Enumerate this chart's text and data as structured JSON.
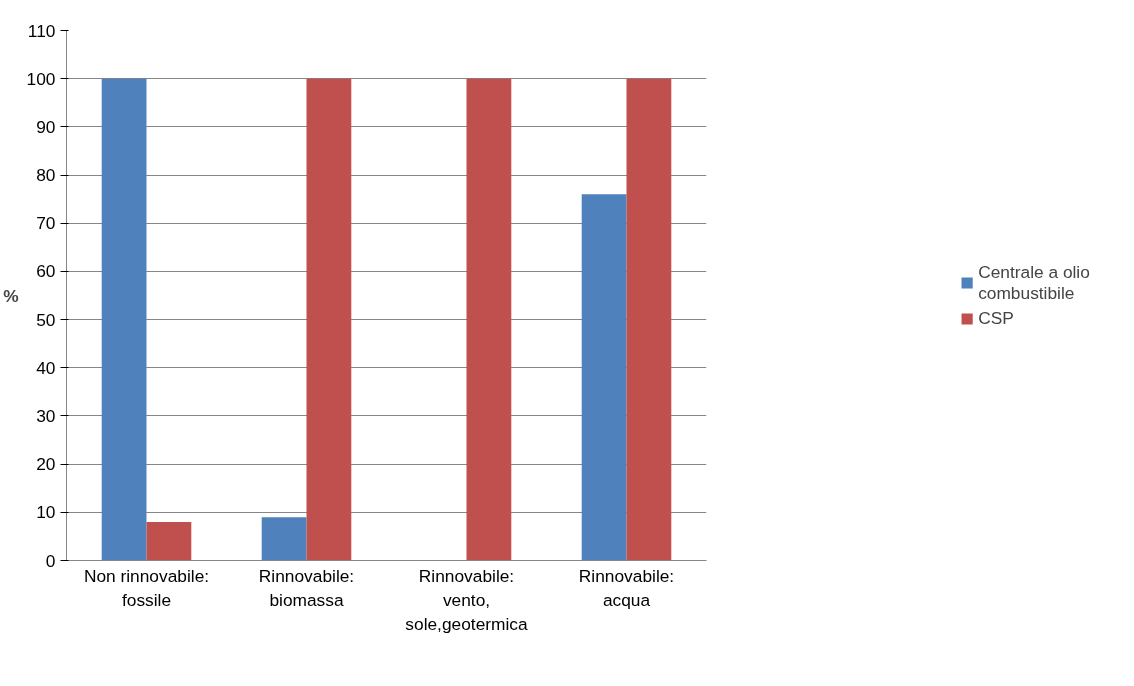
{
  "chart_data": {
    "type": "bar",
    "ylabel": "%",
    "categories": [
      "Non rinnovabile: fossile",
      "Rinnovabile: biomassa",
      "Rinnovabile: vento, sole,geotermica",
      "Rinnovabile: acqua"
    ],
    "series": [
      {
        "name": "Centrale a olio combustibile",
        "color": "#4f81bd",
        "values": [
          100,
          9,
          0,
          76
        ]
      },
      {
        "name": "CSP",
        "color": "#c0504d",
        "values": [
          8,
          100,
          100,
          100
        ]
      }
    ],
    "ylim": [
      0,
      110
    ],
    "yticks": [
      0,
      10,
      20,
      30,
      40,
      50,
      60,
      70,
      80,
      90,
      100,
      110
    ],
    "grid": "y",
    "legend": "right"
  }
}
